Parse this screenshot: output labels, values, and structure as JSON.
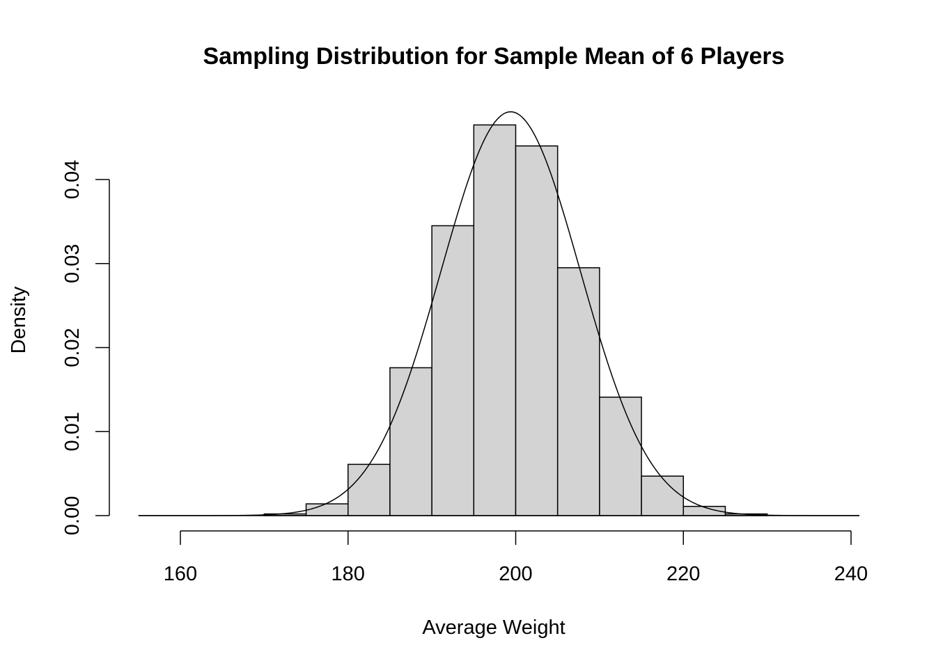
{
  "chart_data": {
    "type": "bar",
    "title": "Sampling Distribution for Sample Mean of 6 Players",
    "xlabel": "Average Weight",
    "ylabel": "Density",
    "xlim": [
      155,
      241
    ],
    "ylim": [
      0,
      0.05
    ],
    "x_ticks": [
      160,
      180,
      200,
      220,
      240
    ],
    "y_ticks": [
      0.0,
      0.01,
      0.02,
      0.03,
      0.04
    ],
    "x_tick_labels": [
      "160",
      "180",
      "200",
      "220",
      "240"
    ],
    "y_tick_labels": [
      "0.00",
      "0.01",
      "0.02",
      "0.03",
      "0.04"
    ],
    "bin_edges": [
      170,
      175,
      180,
      185,
      190,
      195,
      200,
      205,
      210,
      215,
      220,
      225,
      230
    ],
    "values": [
      0.0002,
      0.0014,
      0.0061,
      0.0176,
      0.0345,
      0.0465,
      0.044,
      0.0295,
      0.0141,
      0.0047,
      0.0011,
      0.0002
    ],
    "baseline_range": [
      155,
      241
    ],
    "curve": {
      "type": "normal-density",
      "mean": 199.4,
      "sd": 8.3,
      "range": [
        155,
        241
      ]
    },
    "colors": {
      "bar_fill": "#d3d3d3",
      "stroke": "#000000"
    },
    "grid": false,
    "legend": "none"
  }
}
